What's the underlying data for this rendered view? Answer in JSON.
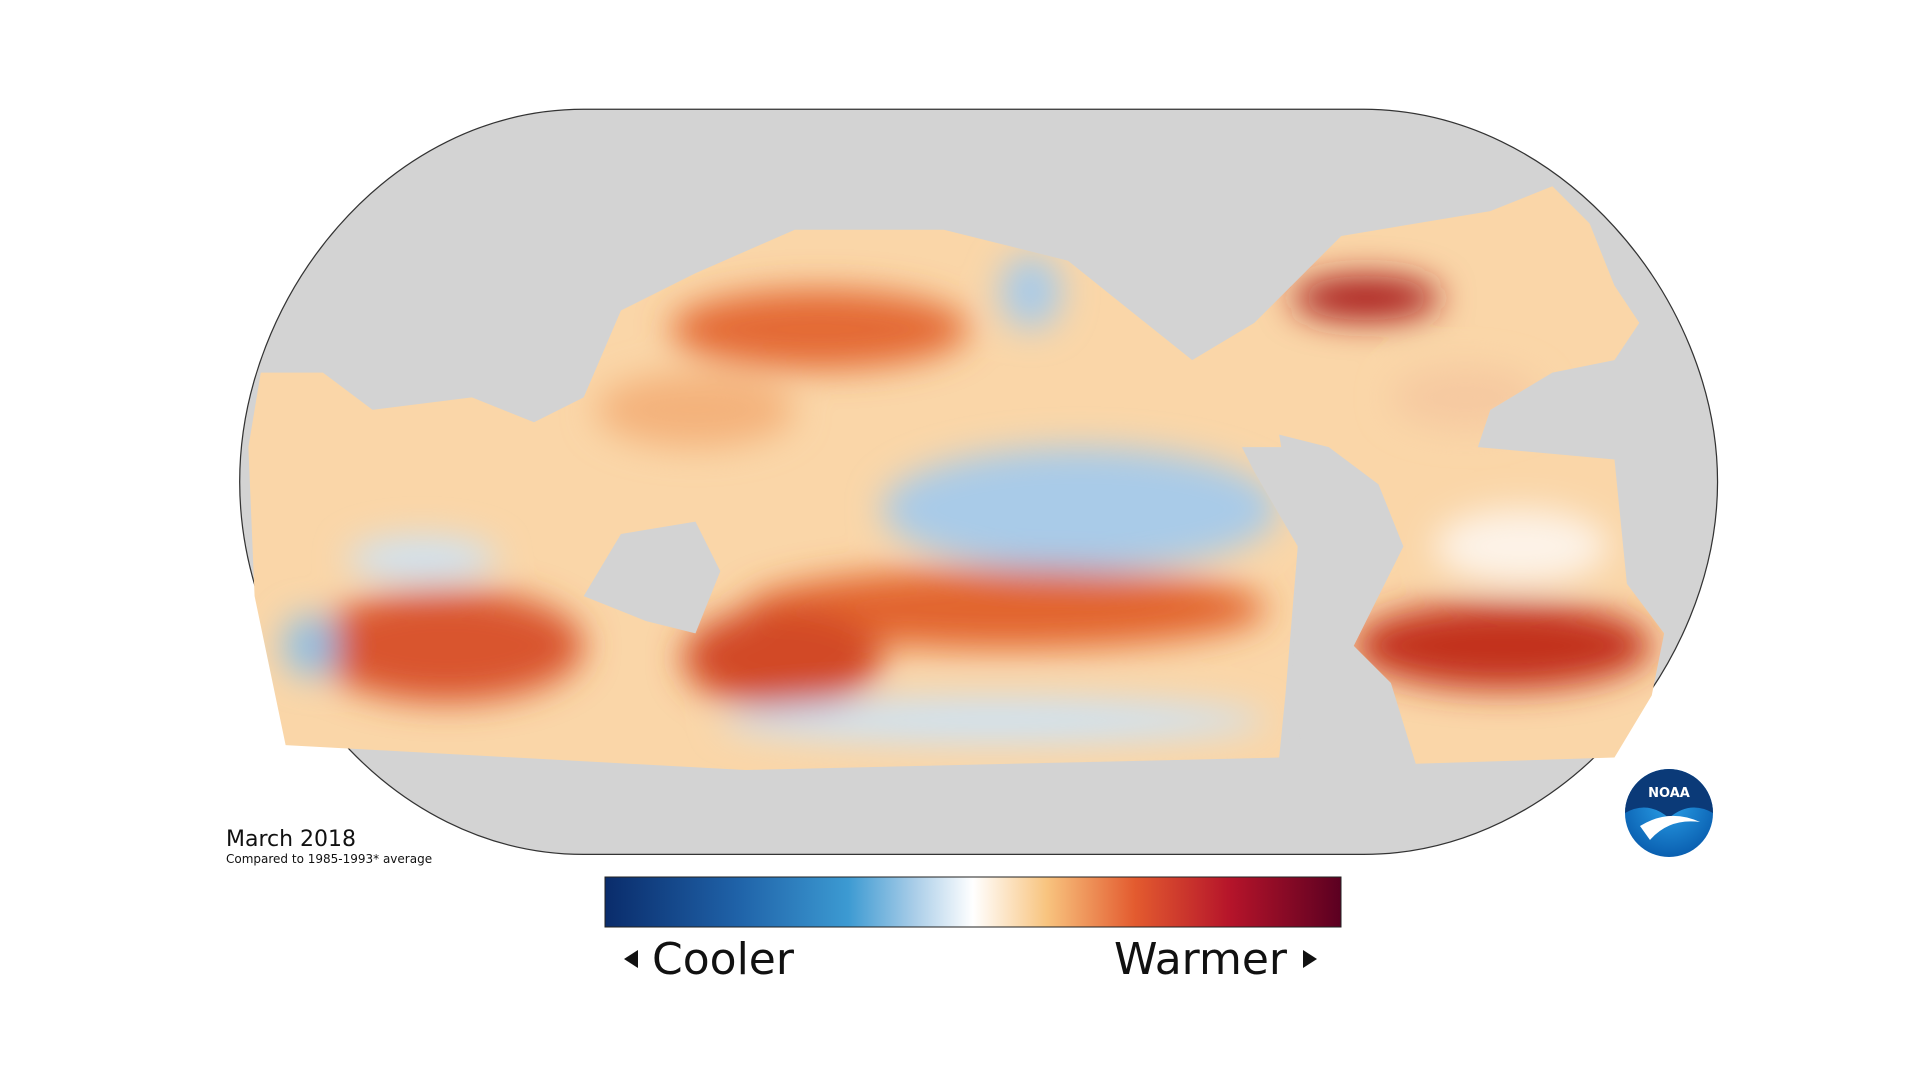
{
  "map": {
    "date": "March 2018",
    "baseline": "Compared to 1985-1993* average",
    "legend": {
      "low": "Cooler",
      "high": "Warmer"
    },
    "logo": "NOAA"
  }
}
